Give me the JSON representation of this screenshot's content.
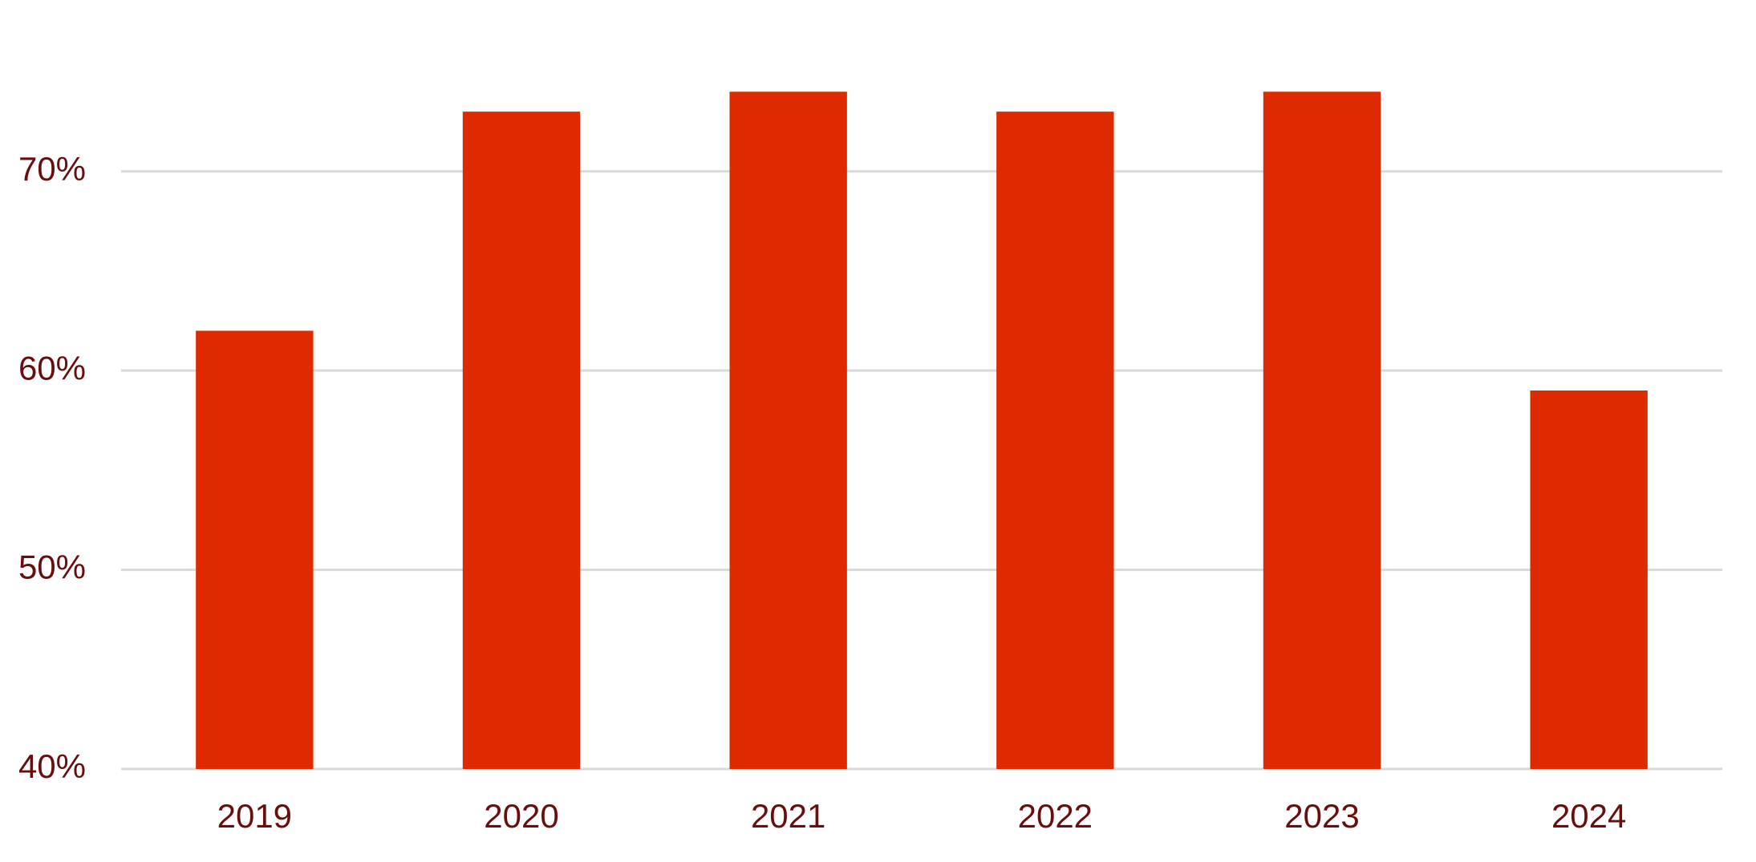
{
  "chart_data": {
    "type": "bar",
    "categories": [
      "2019",
      "2020",
      "2021",
      "2022",
      "2023",
      "2024"
    ],
    "values": [
      62,
      73,
      74,
      73,
      74,
      59
    ],
    "color": "#dd2a00",
    "ylim": [
      40,
      78
    ],
    "yticks": [
      {
        "value": 40,
        "label": "40%"
      },
      {
        "value": 50,
        "label": "50%"
      },
      {
        "value": 60,
        "label": "60%"
      },
      {
        "value": 70,
        "label": "70%"
      }
    ],
    "grid": true
  }
}
